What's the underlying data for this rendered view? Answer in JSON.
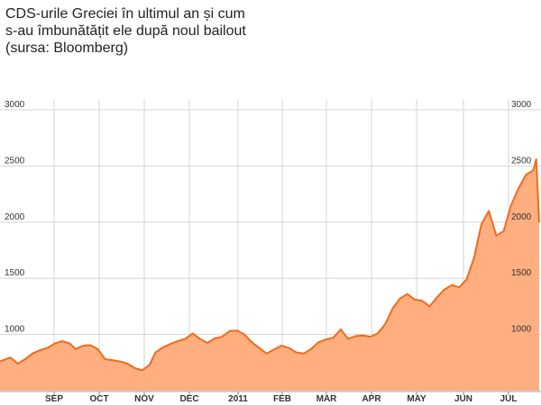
{
  "title": {
    "line1": "CDS-urile Greciei în ultimul an și cum",
    "line2": "s-au îmbunătățit ele după noul bailout",
    "line3": "(sursa: Bloomberg)"
  },
  "colors": {
    "fill": "#ffae80",
    "line": "#f26a1b",
    "grid": "#d6d6d6",
    "text": "#333333"
  },
  "chart_data": {
    "type": "area",
    "ylim": [
      500,
      3000
    ],
    "y_ticks": [
      "3000",
      "2500",
      "2000",
      "1500",
      "1000"
    ],
    "y_tick_values": [
      3000,
      2500,
      2000,
      1500,
      1000
    ],
    "x_labels": [
      "SEP",
      "OCT",
      "NOV",
      "DEC",
      "2011",
      "FEB",
      "MAR",
      "APR",
      "MAY",
      "JUN",
      "JUL"
    ],
    "x": [
      "2010-07-22",
      "2010-07-29",
      "2010-08-03",
      "2010-08-08",
      "2010-08-13",
      "2010-08-18",
      "2010-08-23",
      "2010-08-28",
      "2010-09-02",
      "2010-09-07",
      "2010-09-11",
      "2010-09-16",
      "2010-09-21",
      "2010-09-26",
      "2010-10-01",
      "2010-10-06",
      "2010-10-11",
      "2010-10-16",
      "2010-10-21",
      "2010-10-26",
      "2010-10-31",
      "2010-11-04",
      "2010-11-09",
      "2010-11-14",
      "2010-11-19",
      "2010-11-24",
      "2010-11-29",
      "2010-12-04",
      "2010-12-09",
      "2010-12-14",
      "2010-12-19",
      "2010-12-24",
      "2010-12-29",
      "2011-01-03",
      "2011-01-08",
      "2011-01-13",
      "2011-01-18",
      "2011-01-23",
      "2011-01-28",
      "2011-02-02",
      "2011-02-07",
      "2011-02-12",
      "2011-02-17",
      "2011-02-22",
      "2011-02-27",
      "2011-03-04",
      "2011-03-09",
      "2011-03-14",
      "2011-03-19",
      "2011-03-24",
      "2011-03-29",
      "2011-04-03",
      "2011-04-08",
      "2011-04-13",
      "2011-04-18",
      "2011-04-23",
      "2011-04-28",
      "2011-05-03",
      "2011-05-08",
      "2011-05-13",
      "2011-05-18",
      "2011-05-23",
      "2011-05-28",
      "2011-06-02",
      "2011-06-07",
      "2011-06-12",
      "2011-06-17",
      "2011-06-22",
      "2011-06-27",
      "2011-07-02",
      "2011-07-07",
      "2011-07-12",
      "2011-07-17",
      "2011-07-19",
      "2011-07-21"
    ],
    "series": [
      {
        "values": [
          760,
          795,
          740,
          780,
          830,
          860,
          880,
          920,
          940,
          920,
          870,
          900,
          905,
          870,
          780,
          770,
          760,
          740,
          700,
          680,
          730,
          840,
          885,
          915,
          940,
          960,
          1010,
          960,
          925,
          965,
          980,
          1030,
          1035,
          1000,
          930,
          880,
          830,
          865,
          900,
          880,
          840,
          830,
          870,
          930,
          955,
          970,
          1045,
          960,
          985,
          990,
          980,
          1010,
          1090,
          1230,
          1320,
          1360,
          1310,
          1300,
          1250,
          1330,
          1400,
          1440,
          1420,
          1490,
          1680,
          1980,
          2100,
          1880,
          1920,
          2150,
          2300,
          2420,
          2460,
          2560,
          2000
        ]
      }
    ]
  }
}
